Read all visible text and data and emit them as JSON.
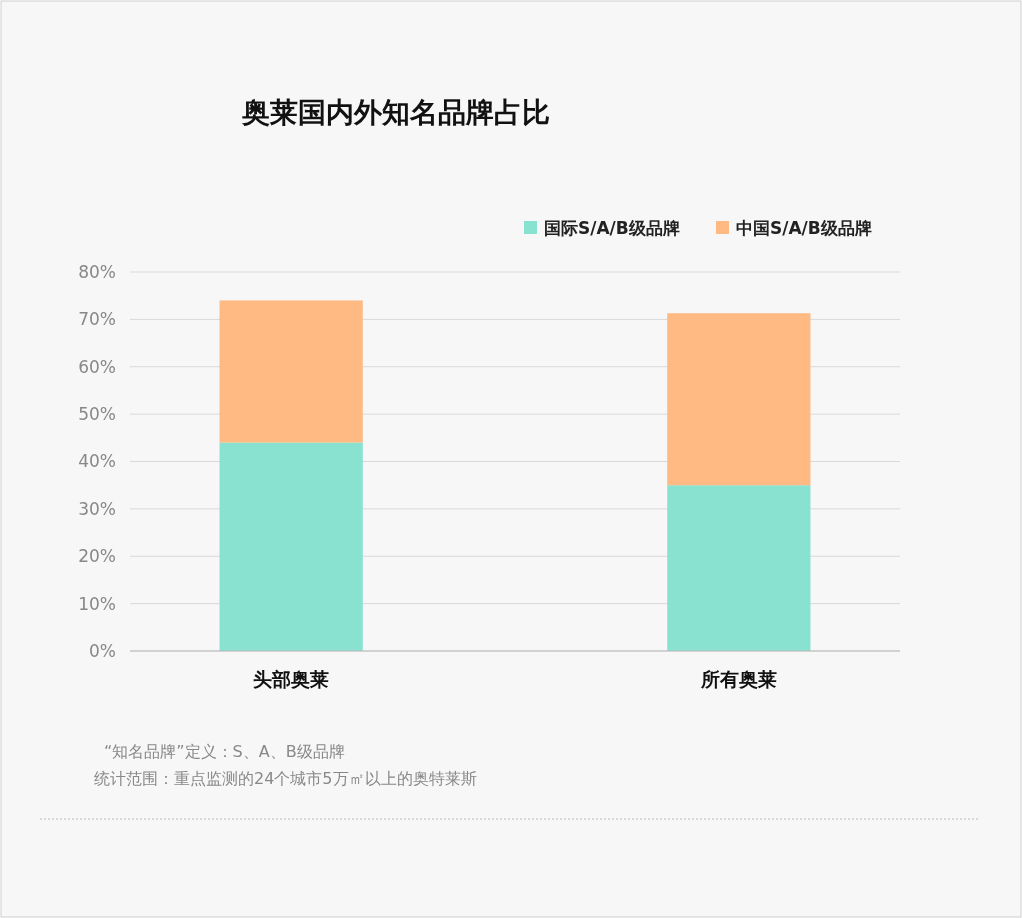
{
  "chart_data": {
    "type": "bar",
    "title": "奥莱国内外知名品牌占比",
    "categories": [
      "头部奥莱",
      "所有奥莱"
    ],
    "stacked": true,
    "series": [
      {
        "name": "国际S/A/B级品牌",
        "color": "#88e2cf",
        "values": [
          44,
          35
        ]
      },
      {
        "name": "中国S/A/B级品牌",
        "color": "#ffb982",
        "values": [
          30,
          36.3
        ]
      }
    ],
    "ylim": [
      0,
      80
    ],
    "yticks": [
      {
        "value": 0,
        "label": "0%"
      },
      {
        "value": 10,
        "label": "10%"
      },
      {
        "value": 20,
        "label": "20%"
      },
      {
        "value": 30,
        "label": "30%"
      },
      {
        "value": 40,
        "label": "40%"
      },
      {
        "value": 50,
        "label": "50%"
      },
      {
        "value": 60,
        "label": "60%"
      },
      {
        "value": 70,
        "label": "70%"
      },
      {
        "value": 80,
        "label": "80%"
      }
    ],
    "grid": "y",
    "legend": "top right",
    "annotations": [
      "“知名品牌”定义：S、A、B级品牌",
      "统计范围：重点监测的24个城市5万㎡以上的奥特莱斯"
    ]
  }
}
